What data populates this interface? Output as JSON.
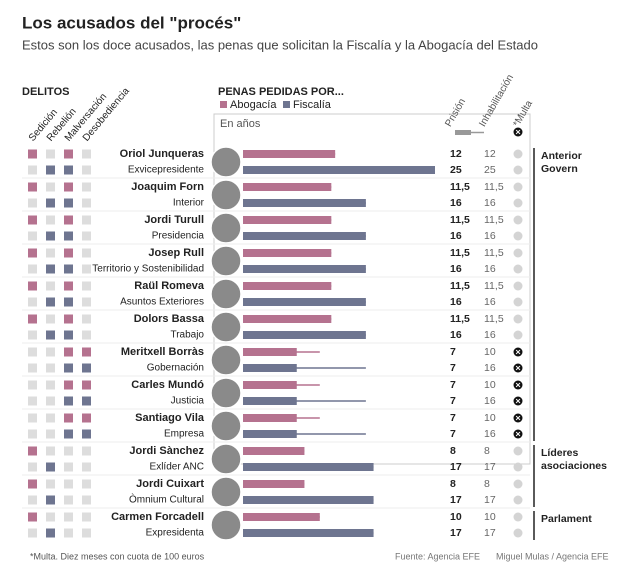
{
  "chart_data": {
    "type": "bar",
    "title": "Los acusados del \"procés\"",
    "subtitle": "Estos son los doce acusados, las penas que solicitan la Fiscalía y la Abogacía del Estado",
    "delitos_title": "DELITOS",
    "delitos": [
      "Sedición",
      "Rebelión",
      "Malversación",
      "Desobediencia"
    ],
    "penas_title": "PENAS PEDIDAS POR...",
    "unit": "En años",
    "columns": [
      "Prisión",
      "Inhabilitación",
      "*Multa"
    ],
    "categories": [
      "Oriol Junqueras",
      "Joaquim Forn",
      "Jordi Turull",
      "Josep Rull",
      "Raül Romeva",
      "Dolors Bassa",
      "Meritxell Borràs",
      "Carles Mundó",
      "Santiago Vila",
      "Jordi Sànchez",
      "Jordi Cuixart",
      "Carmen Forcadell"
    ],
    "roles": [
      "Exvicepresidente",
      "Interior",
      "Presidencia",
      "Territorio y Sostenibilidad",
      "Asuntos Exteriores",
      "Trabajo",
      "Gobernación",
      "Justicia",
      "Empresa",
      "Exlíder ANC",
      "Òmnium Cultural",
      "Expresidenta"
    ],
    "groups": [
      "Anterior Govern",
      "Anterior Govern",
      "Anterior Govern",
      "Anterior Govern",
      "Anterior Govern",
      "Anterior Govern",
      "Anterior Govern",
      "Anterior Govern",
      "Anterior Govern",
      "Líderes asociaciones",
      "Líderes asociaciones",
      "Parlament"
    ],
    "xlim": [
      0,
      25
    ],
    "series": [
      {
        "name": "Abogacía",
        "color": "#b5728f",
        "values": [
          12,
          11.5,
          11.5,
          11.5,
          11.5,
          11.5,
          7,
          7,
          7,
          8,
          8,
          10
        ],
        "value_labels": [
          "12",
          "11,5",
          "11,5",
          "11,5",
          "11,5",
          "11,5",
          "7",
          "7",
          "7",
          "8",
          "8",
          "10"
        ],
        "inhabilitacion": [
          12,
          11.5,
          11.5,
          11.5,
          11.5,
          11.5,
          10,
          10,
          10,
          8,
          8,
          10
        ],
        "inhabilitacion_labels": [
          "12",
          "11,5",
          "11,5",
          "11,5",
          "11,5",
          "11,5",
          "10",
          "10",
          "10",
          "8",
          "8",
          "10"
        ],
        "multa": [
          false,
          false,
          false,
          false,
          false,
          false,
          true,
          true,
          true,
          false,
          false,
          false
        ],
        "delitos": [
          [
            true,
            false,
            true,
            false
          ],
          [
            true,
            false,
            true,
            false
          ],
          [
            true,
            false,
            true,
            false
          ],
          [
            true,
            false,
            true,
            false
          ],
          [
            true,
            false,
            true,
            false
          ],
          [
            true,
            false,
            true,
            false
          ],
          [
            false,
            false,
            true,
            true
          ],
          [
            false,
            false,
            true,
            true
          ],
          [
            false,
            false,
            true,
            true
          ],
          [
            true,
            false,
            false,
            false
          ],
          [
            true,
            false,
            false,
            false
          ],
          [
            true,
            false,
            false,
            false
          ]
        ]
      },
      {
        "name": "Fiscalía",
        "color": "#6e7590",
        "values": [
          25,
          16,
          16,
          16,
          16,
          16,
          7,
          7,
          7,
          17,
          17,
          17
        ],
        "value_labels": [
          "25",
          "16",
          "16",
          "16",
          "16",
          "16",
          "7",
          "7",
          "7",
          "17",
          "17",
          "17"
        ],
        "inhabilitacion": [
          25,
          16,
          16,
          16,
          16,
          16,
          16,
          16,
          16,
          17,
          17,
          17
        ],
        "inhabilitacion_labels": [
          "25",
          "16",
          "16",
          "16",
          "16",
          "16",
          "16",
          "16",
          "16",
          "17",
          "17",
          "17"
        ],
        "multa": [
          false,
          false,
          false,
          false,
          false,
          false,
          true,
          true,
          true,
          false,
          false,
          false
        ],
        "delitos": [
          [
            false,
            true,
            true,
            false
          ],
          [
            false,
            true,
            true,
            false
          ],
          [
            false,
            true,
            true,
            false
          ],
          [
            false,
            true,
            true,
            false
          ],
          [
            false,
            true,
            true,
            false
          ],
          [
            false,
            true,
            true,
            false
          ],
          [
            false,
            false,
            true,
            true
          ],
          [
            false,
            false,
            true,
            true
          ],
          [
            false,
            false,
            true,
            true
          ],
          [
            false,
            true,
            false,
            false
          ],
          [
            false,
            true,
            false,
            false
          ],
          [
            false,
            true,
            false,
            false
          ]
        ]
      }
    ],
    "note": "*Multa. Diez meses con cuota de 100 euros",
    "source": "Fuente: Agencia EFE",
    "credit": "Miguel Mulas / Agencia EFE"
  }
}
